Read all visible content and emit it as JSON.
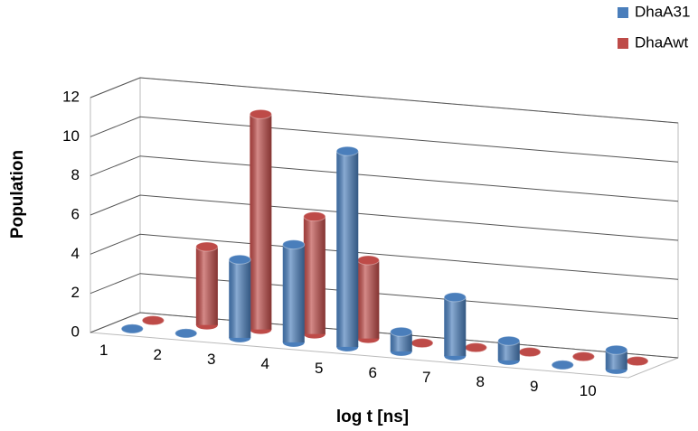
{
  "chart_data": {
    "type": "bar3d",
    "x_label": "log t [ns]",
    "y_label": "Population",
    "categories": [
      "1",
      "2",
      "3",
      "4",
      "5",
      "6",
      "7",
      "8",
      "9",
      "10"
    ],
    "series": [
      {
        "name": "DhaA31",
        "color": "#4a7ebb",
        "values": [
          0,
          0,
          4,
          5,
          10,
          1,
          3,
          1,
          0,
          1
        ]
      },
      {
        "name": "DhaAwt",
        "color": "#be4b48",
        "values": [
          0,
          4,
          11,
          6,
          4,
          0,
          0,
          0,
          0,
          0
        ]
      }
    ],
    "ylim": [
      0,
      12
    ],
    "yticks": [
      0,
      2,
      4,
      6,
      8,
      10,
      12
    ],
    "grid": true,
    "legend": "top-right"
  }
}
